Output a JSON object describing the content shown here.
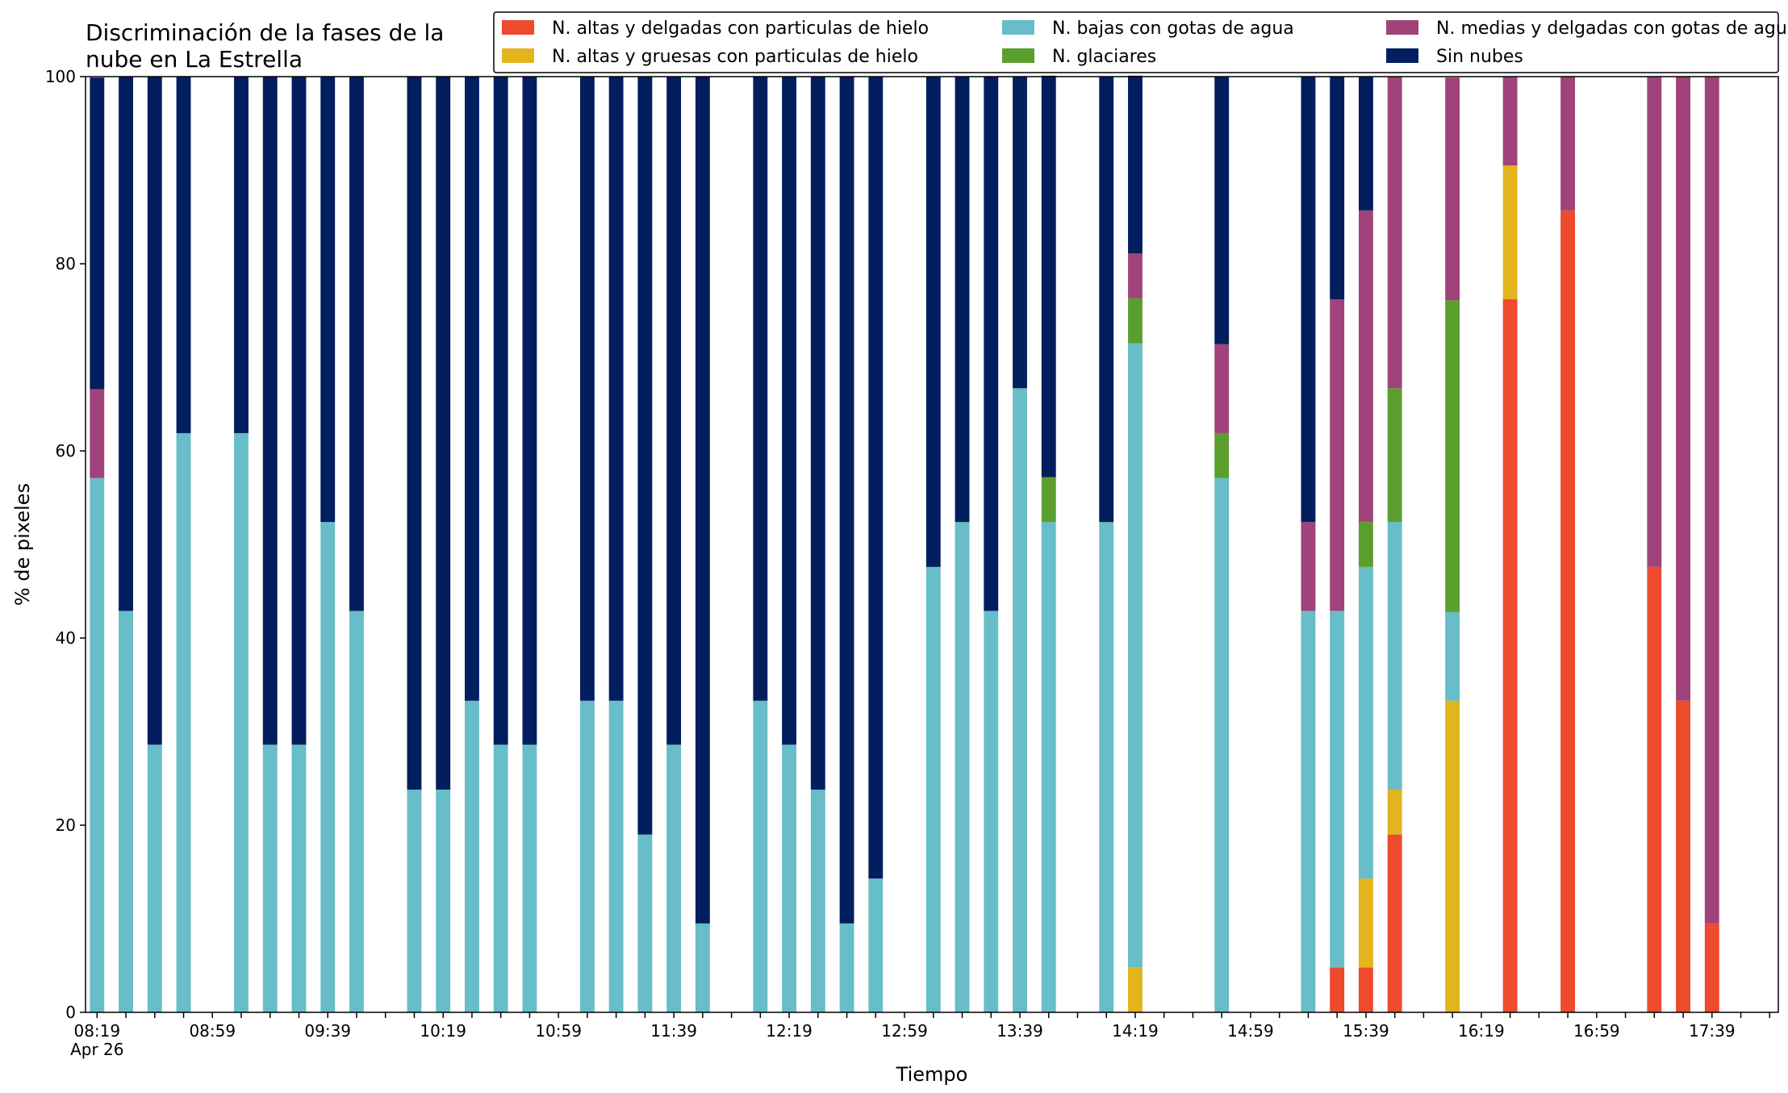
{
  "chart_data": {
    "type": "bar",
    "stacked": true,
    "title": "Discriminación de la fases de la nube en La Estrella",
    "title_lines": [
      "Discriminación de la fases de la",
      "nube en La Estrella"
    ],
    "xlabel": "Tiempo",
    "ylabel": "% de pixeles",
    "ylim": [
      0,
      100
    ],
    "yticks": [
      0,
      20,
      40,
      60,
      80,
      100
    ],
    "xlim_minutes": [
      495,
      1082
    ],
    "bar_width_minutes": 5,
    "xtick_labels": [
      {
        "minute": 499,
        "label": "08:19",
        "sublabel": "Apr 26"
      },
      {
        "minute": 539,
        "label": "08:59"
      },
      {
        "minute": 579,
        "label": "09:39"
      },
      {
        "minute": 619,
        "label": "10:19"
      },
      {
        "minute": 659,
        "label": "10:59"
      },
      {
        "minute": 699,
        "label": "11:39"
      },
      {
        "minute": 739,
        "label": "12:19"
      },
      {
        "minute": 779,
        "label": "12:59"
      },
      {
        "minute": 819,
        "label": "13:39"
      },
      {
        "minute": 859,
        "label": "14:19"
      },
      {
        "minute": 899,
        "label": "14:59"
      },
      {
        "minute": 939,
        "label": "15:39"
      },
      {
        "minute": 979,
        "label": "16:19"
      },
      {
        "minute": 1019,
        "label": "16:59"
      },
      {
        "minute": 1059,
        "label": "17:39"
      }
    ],
    "legend": {
      "placement": "top-right",
      "columns": 3
    },
    "series": [
      {
        "name": "N. altas y delgadas con particulas de hielo",
        "color": "#ed4a2e"
      },
      {
        "name": "N. altas y gruesas con particulas de hielo",
        "color": "#e2b41d"
      },
      {
        "name": "N. bajas con gotas de agua",
        "color": "#67bdc8"
      },
      {
        "name": "N. glaciares",
        "color": "#5a9e2e"
      },
      {
        "name": "N. medias y delgadas con gotas de agua",
        "color": "#a0437a"
      },
      {
        "name": "Sin nubes",
        "color": "#031e5e"
      }
    ],
    "bar_order": [
      "altas_delgadas",
      "altas_gruesas",
      "bajas_agua",
      "glaciares",
      "medias_agua",
      "sin_nubes"
    ],
    "bars": [
      {
        "time": "08:19",
        "values": [
          0,
          0,
          57.1,
          0,
          9.5,
          33.3
        ]
      },
      {
        "time": "08:29",
        "values": [
          0,
          0,
          42.9,
          0,
          0,
          57.1
        ]
      },
      {
        "time": "08:39",
        "values": [
          0,
          0,
          28.6,
          0,
          0,
          71.4
        ]
      },
      {
        "time": "08:49",
        "values": [
          0,
          0,
          61.9,
          0,
          0,
          38.1
        ]
      },
      {
        "time": "09:09",
        "values": [
          0,
          0,
          61.9,
          0,
          0,
          38.1
        ]
      },
      {
        "time": "09:19",
        "values": [
          0,
          0,
          28.6,
          0,
          0,
          71.4
        ]
      },
      {
        "time": "09:29",
        "values": [
          0,
          0,
          28.6,
          0,
          0,
          71.4
        ]
      },
      {
        "time": "09:39",
        "values": [
          0,
          0,
          52.4,
          0,
          0,
          47.6
        ]
      },
      {
        "time": "09:49",
        "values": [
          0,
          0,
          42.9,
          0,
          0,
          57.1
        ]
      },
      {
        "time": "10:09",
        "values": [
          0,
          0,
          23.8,
          0,
          0,
          76.2
        ]
      },
      {
        "time": "10:19",
        "values": [
          0,
          0,
          23.8,
          0,
          0,
          76.2
        ]
      },
      {
        "time": "10:29",
        "values": [
          0,
          0,
          33.3,
          0,
          0,
          66.7
        ]
      },
      {
        "time": "10:39",
        "values": [
          0,
          0,
          28.6,
          0,
          0,
          71.4
        ]
      },
      {
        "time": "10:49",
        "values": [
          0,
          0,
          28.6,
          0,
          0,
          71.4
        ]
      },
      {
        "time": "11:09",
        "values": [
          0,
          0,
          33.3,
          0,
          0,
          66.7
        ]
      },
      {
        "time": "11:19",
        "values": [
          0,
          0,
          33.3,
          0,
          0,
          66.7
        ]
      },
      {
        "time": "11:29",
        "values": [
          0,
          0,
          19.0,
          0,
          0,
          81.0
        ]
      },
      {
        "time": "11:39",
        "values": [
          0,
          0,
          28.6,
          0,
          0,
          71.4
        ]
      },
      {
        "time": "11:49",
        "values": [
          0,
          0,
          9.5,
          0,
          0,
          90.5
        ]
      },
      {
        "time": "12:09",
        "values": [
          0,
          0,
          33.3,
          0,
          0,
          66.7
        ]
      },
      {
        "time": "12:19",
        "values": [
          0,
          0,
          28.6,
          0,
          0,
          71.4
        ]
      },
      {
        "time": "12:29",
        "values": [
          0,
          0,
          23.8,
          0,
          0,
          76.2
        ]
      },
      {
        "time": "12:39",
        "values": [
          0,
          0,
          9.5,
          0,
          0,
          90.5
        ]
      },
      {
        "time": "12:49",
        "values": [
          0,
          0,
          14.3,
          0,
          0,
          85.7
        ]
      },
      {
        "time": "13:09",
        "values": [
          0,
          0,
          47.6,
          0,
          0,
          52.4
        ]
      },
      {
        "time": "13:19",
        "values": [
          0,
          0,
          52.4,
          0,
          0,
          47.6
        ]
      },
      {
        "time": "13:29",
        "values": [
          0,
          0,
          42.9,
          0,
          0,
          57.1
        ]
      },
      {
        "time": "13:39",
        "values": [
          0,
          0,
          66.7,
          0,
          0,
          33.3
        ]
      },
      {
        "time": "13:49",
        "values": [
          0,
          0,
          52.4,
          4.8,
          0,
          42.9
        ]
      },
      {
        "time": "14:09",
        "values": [
          0,
          0,
          52.4,
          0,
          0,
          47.6
        ]
      },
      {
        "time": "14:19",
        "values": [
          0,
          4.8,
          66.7,
          4.8,
          4.8,
          19.0
        ]
      },
      {
        "time": "14:49",
        "values": [
          0,
          0,
          57.1,
          4.8,
          9.5,
          28.6
        ]
      },
      {
        "time": "15:19",
        "values": [
          0,
          0,
          42.9,
          0,
          9.5,
          47.6
        ]
      },
      {
        "time": "15:29",
        "values": [
          4.8,
          0,
          38.1,
          0,
          33.3,
          23.8
        ]
      },
      {
        "time": "15:39",
        "values": [
          4.8,
          9.5,
          33.3,
          4.8,
          33.3,
          14.3
        ]
      },
      {
        "time": "15:49",
        "values": [
          19.0,
          4.8,
          28.6,
          14.3,
          33.3,
          0
        ]
      },
      {
        "time": "16:09",
        "values": [
          0,
          33.3,
          9.5,
          33.3,
          23.8,
          0
        ]
      },
      {
        "time": "16:29",
        "values": [
          76.2,
          14.3,
          0,
          0,
          9.5,
          0
        ]
      },
      {
        "time": "16:49",
        "values": [
          85.7,
          0,
          0,
          0,
          14.3,
          0
        ]
      },
      {
        "time": "17:19",
        "values": [
          47.6,
          0,
          0,
          0,
          52.4,
          0
        ]
      },
      {
        "time": "17:29",
        "values": [
          33.3,
          0,
          0,
          0,
          66.7,
          0
        ]
      },
      {
        "time": "17:39",
        "values": [
          9.5,
          0,
          0,
          0,
          90.5,
          0
        ]
      }
    ]
  }
}
